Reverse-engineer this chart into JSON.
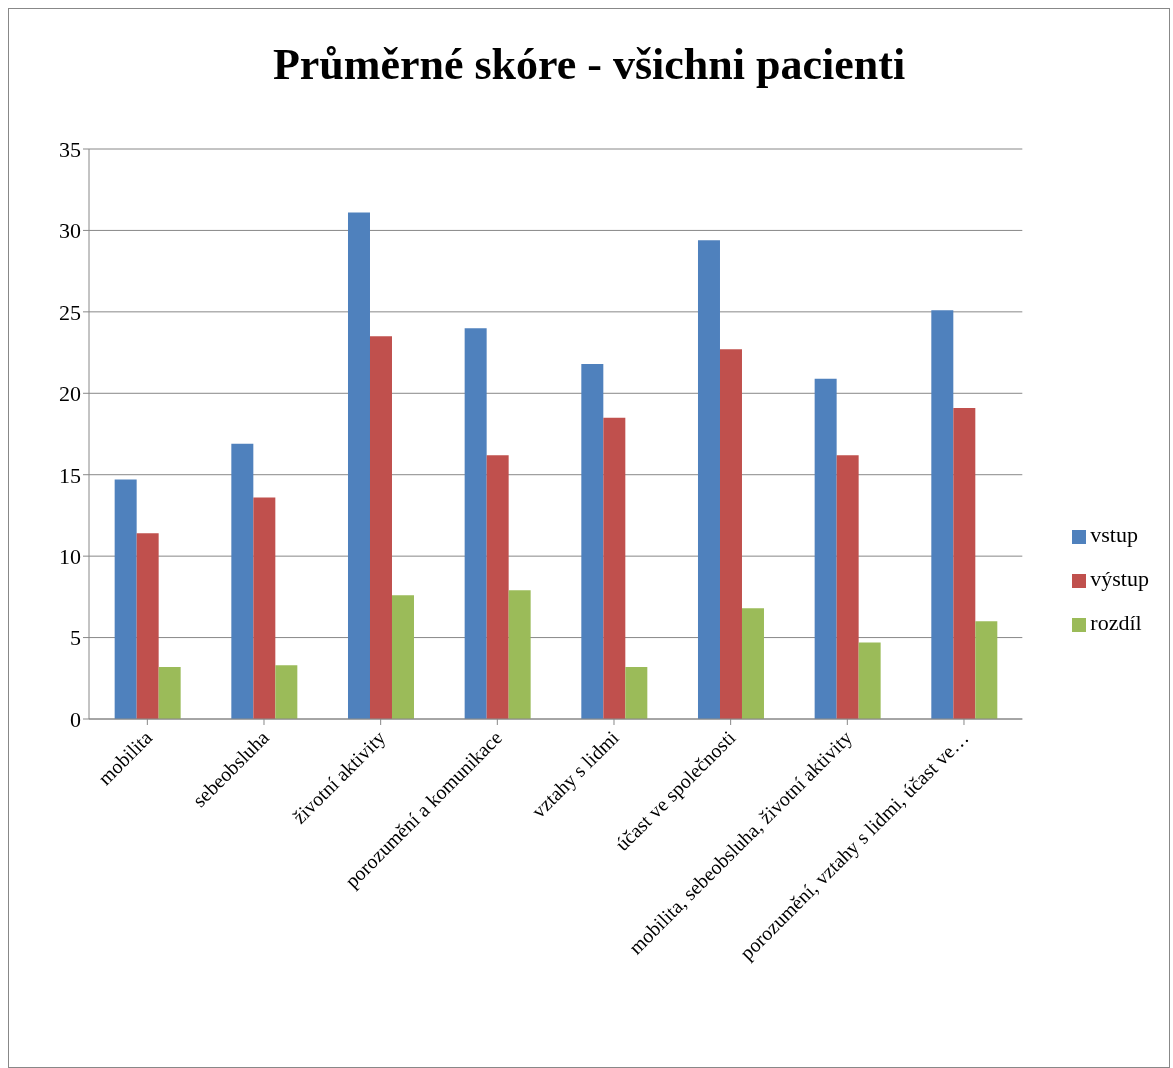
{
  "chart_data": {
    "type": "bar",
    "title": "Průměrné skóre - všichni pacienti",
    "categories": [
      "mobilita",
      "sebeobsluha",
      "životní aktivity",
      "porozumění a komunikace",
      "vztahy s lidmi",
      "účast ve společnosti",
      "mobilita, sebeobsluha, životní aktivity",
      "porozumění, vztahy s lidmi, účast ve…"
    ],
    "series": [
      {
        "name": "vstup",
        "color": "#4f81bd",
        "values": [
          14.7,
          16.9,
          31.1,
          24.0,
          21.8,
          29.4,
          20.9,
          25.1
        ]
      },
      {
        "name": "výstup",
        "color": "#c0504d",
        "values": [
          11.4,
          13.6,
          23.5,
          16.2,
          18.5,
          22.7,
          16.2,
          19.1
        ]
      },
      {
        "name": "rozdíl",
        "color": "#9bbb59",
        "values": [
          3.2,
          3.3,
          7.6,
          7.9,
          3.2,
          6.8,
          4.7,
          6.0
        ]
      }
    ],
    "ylim": [
      0,
      35
    ],
    "yticks": [
      0,
      5,
      10,
      15,
      20,
      25,
      30,
      35
    ],
    "grid": "y",
    "legend": "right"
  }
}
